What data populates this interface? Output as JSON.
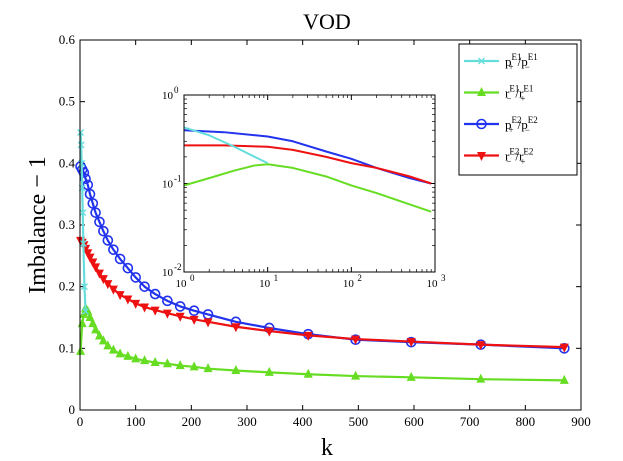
{
  "chart_data": {
    "type": "line",
    "title": "VOD",
    "xlabel": "k",
    "ylabel": "Imbalance − 1",
    "xlim": [
      0,
      900
    ],
    "ylim": [
      0,
      0.6
    ],
    "xticks": [
      "0",
      "100",
      "200",
      "300",
      "400",
      "500",
      "600",
      "700",
      "800",
      "900"
    ],
    "yticks": [
      "0",
      "0.1",
      "0.2",
      "0.3",
      "0.4",
      "0.5",
      "0.6"
    ],
    "legend_position": "top-right",
    "series": [
      {
        "name": "p+E1/p−E1",
        "legend": {
          "main1": "p",
          "sub1": "+",
          "sup1": "E1",
          "sep": "/",
          "main2": "p",
          "sub2": "−",
          "sup2": "E1"
        },
        "color": "#66dddd",
        "marker": "x",
        "x": [
          1,
          2,
          3,
          4,
          5,
          6,
          8,
          10
        ],
        "y": [
          0.45,
          0.43,
          0.4,
          0.36,
          0.32,
          0.27,
          0.2,
          0.16
        ]
      },
      {
        "name": "r−E1/r+E1",
        "legend": {
          "main1": "r",
          "sub1": "−",
          "sup1": "E1",
          "sep": "/",
          "main2": "r",
          "sub2": "+",
          "sup2": "E1"
        },
        "color": "#66dd22",
        "marker": "triangle-up",
        "x": [
          1,
          4,
          7,
          10,
          14,
          18,
          23,
          28,
          35,
          42,
          50,
          60,
          72,
          86,
          100,
          116,
          135,
          157,
          180,
          205,
          230,
          280,
          340,
          410,
          495,
          595,
          720,
          870
        ],
        "y": [
          0.095,
          0.14,
          0.155,
          0.165,
          0.16,
          0.15,
          0.14,
          0.13,
          0.12,
          0.112,
          0.104,
          0.097,
          0.091,
          0.087,
          0.083,
          0.08,
          0.077,
          0.075,
          0.072,
          0.07,
          0.067,
          0.064,
          0.061,
          0.058,
          0.055,
          0.053,
          0.05,
          0.048
        ]
      },
      {
        "name": "p+E2/p−E2",
        "legend": {
          "main1": "p",
          "sub1": "+",
          "sup1": "E2",
          "sep": "/",
          "main2": "p",
          "sub2": "−",
          "sup2": "E2"
        },
        "color": "#2233ee",
        "marker": "circle",
        "x": [
          1,
          4,
          7,
          10,
          14,
          18,
          23,
          28,
          35,
          42,
          50,
          60,
          72,
          86,
          100,
          116,
          135,
          157,
          180,
          205,
          230,
          280,
          340,
          410,
          495,
          595,
          720,
          870
        ],
        "y": [
          0.395,
          0.39,
          0.385,
          0.375,
          0.365,
          0.35,
          0.335,
          0.32,
          0.305,
          0.29,
          0.275,
          0.26,
          0.245,
          0.23,
          0.215,
          0.2,
          0.188,
          0.177,
          0.168,
          0.161,
          0.155,
          0.143,
          0.133,
          0.123,
          0.114,
          0.11,
          0.106,
          0.1
        ]
      },
      {
        "name": "r−E2/r+E2",
        "legend": {
          "main1": "r",
          "sub1": "−",
          "sup1": "E2",
          "sep": "/",
          "main2": "r",
          "sub2": "+",
          "sup2": "E2"
        },
        "color": "#ee1111",
        "marker": "triangle-down",
        "x": [
          1,
          4,
          7,
          10,
          14,
          18,
          23,
          28,
          35,
          42,
          50,
          60,
          72,
          86,
          100,
          116,
          135,
          157,
          180,
          205,
          230,
          280,
          340,
          410,
          495,
          595,
          720,
          870
        ],
        "y": [
          0.275,
          0.272,
          0.268,
          0.262,
          0.255,
          0.248,
          0.24,
          0.232,
          0.222,
          0.213,
          0.205,
          0.196,
          0.187,
          0.18,
          0.173,
          0.167,
          0.162,
          0.157,
          0.152,
          0.147,
          0.143,
          0.135,
          0.128,
          0.121,
          0.115,
          0.111,
          0.106,
          0.102
        ]
      }
    ],
    "inset": {
      "type": "line",
      "xscale": "log",
      "yscale": "log",
      "xlim": [
        1,
        1000
      ],
      "ylim": [
        0.01,
        1
      ],
      "xticks": [
        {
          "base": "10",
          "exp": "0"
        },
        {
          "base": "10",
          "exp": "1"
        },
        {
          "base": "10",
          "exp": "2"
        },
        {
          "base": "10",
          "exp": "3"
        }
      ],
      "yticks": [
        {
          "base": "10",
          "exp": "-2"
        },
        {
          "base": "10",
          "exp": "-1"
        },
        {
          "base": "10",
          "exp": "0"
        }
      ],
      "series": [
        {
          "color": "#66dddd",
          "x": [
            1,
            2,
            4,
            7,
            10
          ],
          "y": [
            0.43,
            0.35,
            0.26,
            0.2,
            0.17
          ]
        },
        {
          "color": "#66dd22",
          "x": [
            1,
            2,
            4,
            7,
            10,
            20,
            50,
            100,
            200,
            500,
            900
          ],
          "y": [
            0.095,
            0.115,
            0.14,
            0.16,
            0.165,
            0.15,
            0.12,
            0.095,
            0.078,
            0.058,
            0.048
          ]
        },
        {
          "color": "#2233ee",
          "x": [
            1,
            3,
            10,
            20,
            50,
            100,
            200,
            500,
            900
          ],
          "y": [
            0.4,
            0.38,
            0.34,
            0.3,
            0.23,
            0.19,
            0.15,
            0.115,
            0.1
          ]
        },
        {
          "color": "#ee1111",
          "x": [
            1,
            3,
            10,
            20,
            50,
            100,
            200,
            500,
            900
          ],
          "y": [
            0.27,
            0.27,
            0.26,
            0.24,
            0.2,
            0.17,
            0.15,
            0.12,
            0.1
          ]
        }
      ]
    }
  }
}
